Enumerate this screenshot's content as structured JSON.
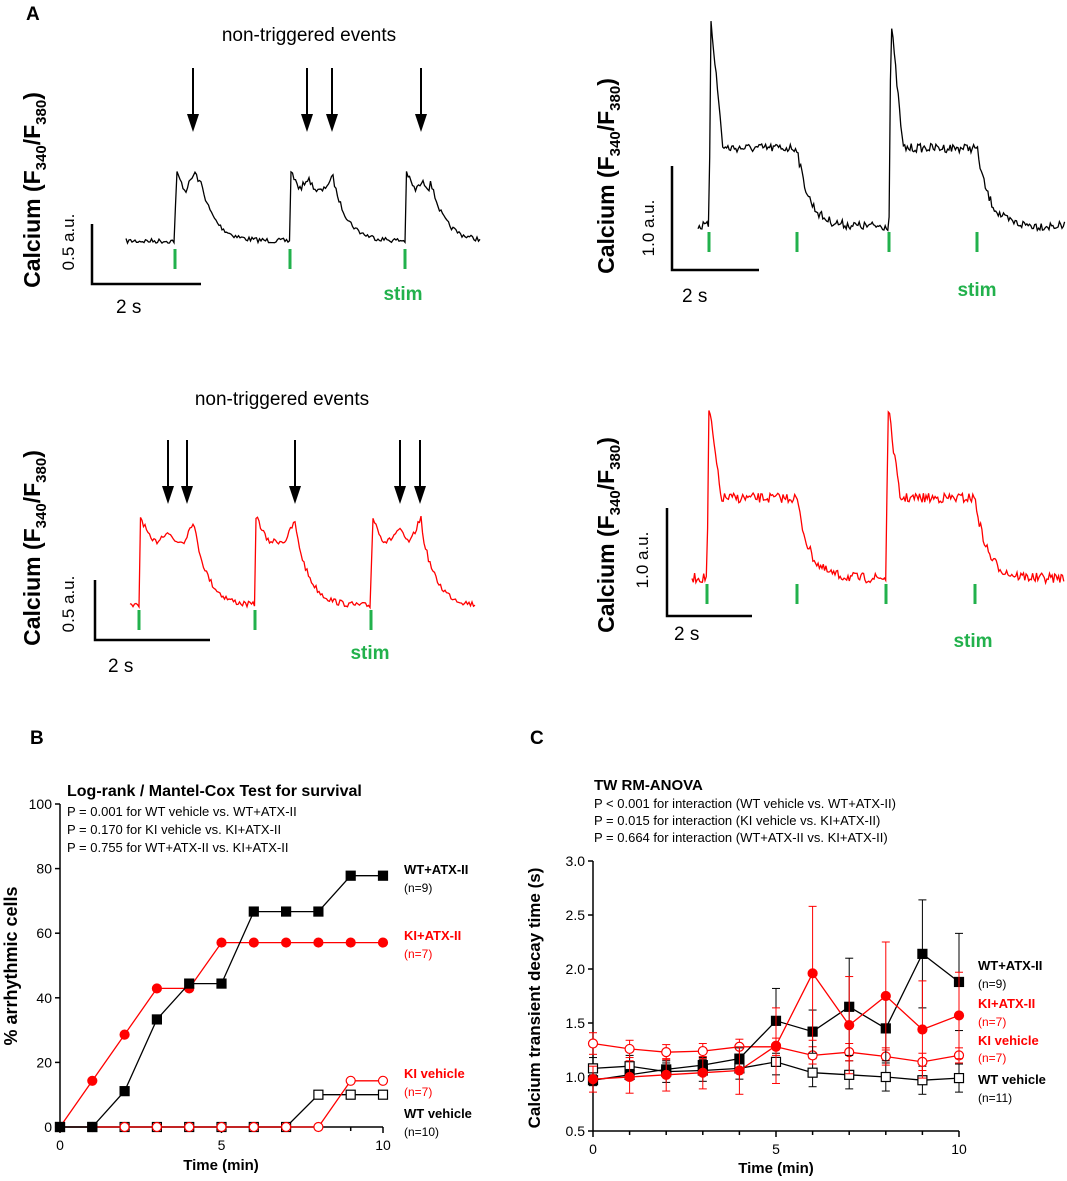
{
  "panels": {
    "a": "A",
    "b": "B",
    "c": "C"
  },
  "colors": {
    "black": "#000000",
    "red": "#ff0000",
    "green": "#22b14c"
  },
  "traces": {
    "ylabel_main": "Calcium (F",
    "ylabel_sub1": "340",
    "ylabel_mid": "/F",
    "ylabel_sub2": "380",
    "ylabel_end": ")",
    "stim_label": "stim",
    "time_scale": "2 s",
    "nontriggered": "non-triggered events",
    "scale_05": "0.5 a.u.",
    "scale_10": "1.0 a.u."
  },
  "chart_data": [
    {
      "type": "line",
      "id": "B",
      "title": "Log-rank / Mantel-Cox Test for survival",
      "notes": [
        "P = 0.001 for WT vehicle vs. WT+ATX-II",
        "P = 0.170 for KI vehicle vs. KI+ATX-II",
        "P = 0.755 for WT+ATX-II vs. KI+ATX-II"
      ],
      "xlabel": "Time (min)",
      "ylabel": "% arrhythmic cells",
      "xlim": [
        0,
        10
      ],
      "ylim": [
        0,
        100
      ],
      "xticks": [
        0,
        5,
        10
      ],
      "yticks": [
        0,
        20,
        40,
        60,
        80,
        100
      ],
      "series": [
        {
          "name": "WT+ATX-II",
          "n": "(n=9)",
          "color": "#000000",
          "marker": "square-filled",
          "x": [
            0,
            1,
            2,
            3,
            4,
            5,
            6,
            7,
            8,
            9,
            10
          ],
          "y": [
            0,
            0,
            11.1,
            33.3,
            44.4,
            44.4,
            66.7,
            66.7,
            66.7,
            77.8,
            77.8
          ]
        },
        {
          "name": "KI+ATX-II",
          "n": "(n=7)",
          "color": "#ff0000",
          "marker": "circle-filled",
          "x": [
            0,
            1,
            2,
            3,
            4,
            5,
            6,
            7,
            8,
            9,
            10
          ],
          "y": [
            0,
            14.3,
            28.6,
            42.9,
            42.9,
            57.1,
            57.1,
            57.1,
            57.1,
            57.1,
            57.1
          ]
        },
        {
          "name": "KI vehicle",
          "n": "(n=7)",
          "color": "#ff0000",
          "marker": "circle-open",
          "x": [
            0,
            1,
            2,
            3,
            4,
            5,
            6,
            7,
            8,
            9,
            10
          ],
          "y": [
            0,
            0,
            0,
            0,
            0,
            0,
            0,
            0,
            0,
            14.3,
            14.3
          ]
        },
        {
          "name": "WT vehicle",
          "n": "(n=10)",
          "color": "#000000",
          "marker": "square-open",
          "x": [
            0,
            1,
            2,
            3,
            4,
            5,
            6,
            7,
            8,
            9,
            10
          ],
          "y": [
            0,
            0,
            0,
            0,
            0,
            0,
            0,
            0,
            10,
            10,
            10
          ]
        }
      ]
    },
    {
      "type": "line",
      "id": "C",
      "title": "TW RM-ANOVA",
      "notes": [
        "P < 0.001 for interaction (WT vehicle vs. WT+ATX-II)",
        "P = 0.015 for interaction (KI vehicle vs. KI+ATX-II)",
        "P = 0.664 for interaction (WT+ATX-II vs. KI+ATX-II)"
      ],
      "xlabel": "Time (min)",
      "ylabel": "Calcium transient decay time (s)",
      "xlim": [
        0,
        10
      ],
      "ylim": [
        0.5,
        3.0
      ],
      "xticks": [
        0,
        5,
        10
      ],
      "yticks": [
        "0.5",
        "1.0",
        "1.5",
        "2.0",
        "2.5",
        "3.0"
      ],
      "series": [
        {
          "name": "WT+ATX-II",
          "n": "(n=9)",
          "color": "#000000",
          "marker": "square-filled",
          "x": [
            0,
            1,
            2,
            3,
            4,
            5,
            6,
            7,
            8,
            9,
            10
          ],
          "y": [
            0.97,
            1.02,
            1.07,
            1.11,
            1.17,
            1.52,
            1.42,
            1.65,
            1.45,
            2.14,
            1.88
          ],
          "err": [
            0.05,
            0.05,
            0.06,
            0.07,
            0.1,
            0.3,
            0.2,
            0.45,
            0.3,
            0.5,
            0.45
          ]
        },
        {
          "name": "KI+ATX-II",
          "n": "(n=7)",
          "color": "#ff0000",
          "marker": "circle-filled",
          "x": [
            0,
            1,
            2,
            3,
            4,
            5,
            6,
            7,
            8,
            9,
            10
          ],
          "y": [
            0.98,
            1.0,
            1.02,
            1.04,
            1.06,
            1.29,
            1.96,
            1.48,
            1.75,
            1.44,
            1.57
          ],
          "err": [
            0.12,
            0.15,
            0.15,
            0.15,
            0.22,
            0.35,
            0.62,
            0.45,
            0.5,
            0.45,
            0.4
          ]
        },
        {
          "name": "KI vehicle",
          "n": "(n=7)",
          "color": "#ff0000",
          "marker": "circle-open",
          "x": [
            0,
            1,
            2,
            3,
            4,
            5,
            6,
            7,
            8,
            9,
            10
          ],
          "y": [
            1.31,
            1.26,
            1.23,
            1.24,
            1.28,
            1.28,
            1.2,
            1.23,
            1.19,
            1.14,
            1.2
          ],
          "err": [
            0.1,
            0.08,
            0.07,
            0.07,
            0.07,
            0.08,
            0.08,
            0.08,
            0.08,
            0.08,
            0.07
          ]
        },
        {
          "name": "WT vehicle",
          "n": "(n=11)",
          "color": "#000000",
          "marker": "square-open",
          "x": [
            0,
            1,
            2,
            3,
            4,
            5,
            6,
            7,
            8,
            9,
            10
          ],
          "y": [
            1.08,
            1.1,
            1.05,
            1.06,
            1.08,
            1.14,
            1.04,
            1.02,
            1.0,
            0.97,
            0.99
          ],
          "err": [
            0.1,
            0.1,
            0.1,
            0.1,
            0.1,
            0.12,
            0.13,
            0.13,
            0.13,
            0.13,
            0.13
          ]
        }
      ]
    }
  ]
}
